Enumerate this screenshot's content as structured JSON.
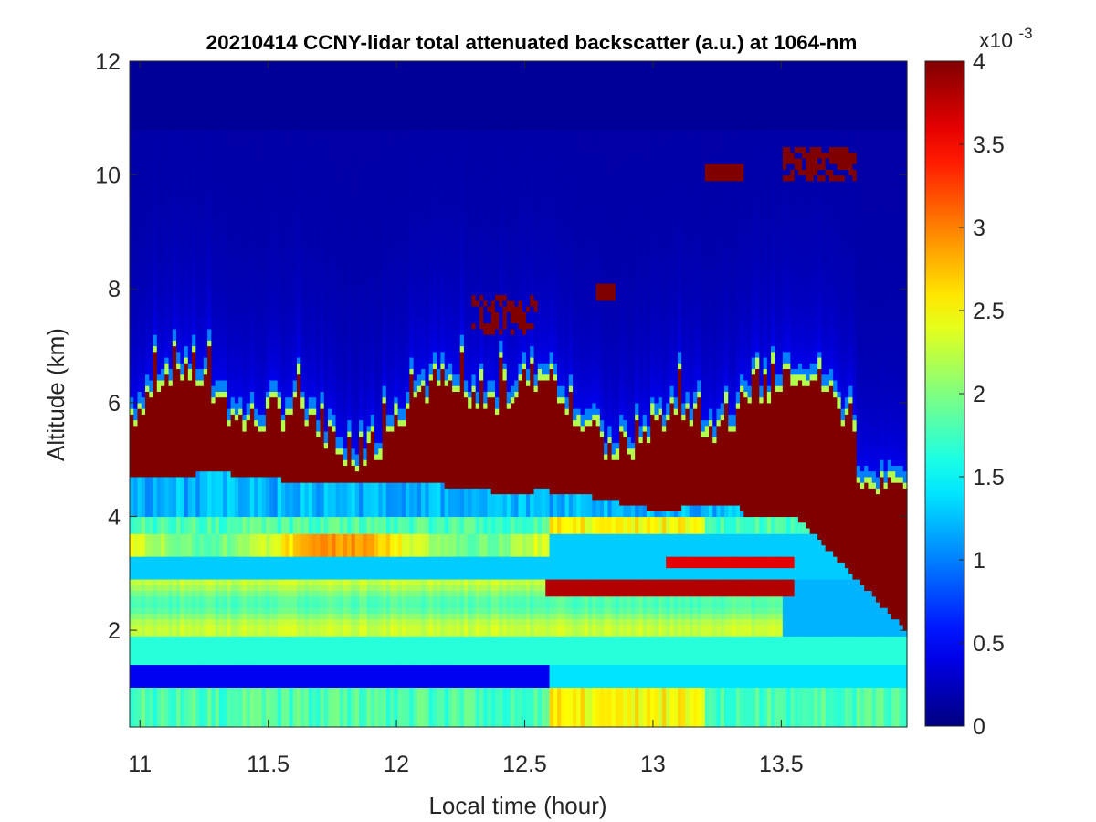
{
  "chart_data": {
    "type": "heatmap",
    "title": "20210414 CCNY-lidar total attenuated backscatter (a.u.) at 1064-nm",
    "xlabel": "Local time (hour)",
    "ylabel": "Altitude (km)",
    "xlim": [
      10.96,
      13.99
    ],
    "ylim": [
      0.3,
      12
    ],
    "xticks": [
      11,
      11.5,
      12,
      12.5,
      13,
      13.5
    ],
    "xtick_labels": [
      "11",
      "11.5",
      "12",
      "12.5",
      "13",
      "13.5"
    ],
    "yticks": [
      2,
      4,
      6,
      8,
      10,
      12
    ],
    "ytick_labels": [
      "2",
      "4",
      "6",
      "8",
      "10",
      "12"
    ],
    "colorbar": {
      "colormap": "jet",
      "clim": [
        0,
        4
      ],
      "ticks": [
        0,
        0.5,
        1,
        1.5,
        2,
        2.5,
        3,
        3.5,
        4
      ],
      "tick_labels": [
        "0",
        "0.5",
        "1",
        "1.5",
        "2",
        "2.5",
        "3",
        "3.5",
        "4"
      ],
      "exponent_base": "x10",
      "exponent_power": "-3"
    },
    "grid": false,
    "features": [
      {
        "layer": "dense aerosol/cloud layer",
        "time": [
          10.96,
          13.99
        ],
        "altitude_km": [
          4.5,
          6.5
        ],
        "value": 4
      },
      {
        "layer": "descending dense layer",
        "time": [
          13.55,
          13.99
        ],
        "altitude_km": [
          1.9,
          4.2
        ],
        "value": 4
      },
      {
        "layer": "thin layer",
        "time": [
          12.58,
          13.55
        ],
        "altitude_km": [
          2.6,
          2.95
        ],
        "value": 4
      },
      {
        "layer": "cirrus",
        "time": [
          13.2,
          13.8
        ],
        "altitude_km": [
          9.8,
          10.6
        ],
        "value": 4
      },
      {
        "layer": "elevated aerosol band",
        "time": [
          10.96,
          12.6
        ],
        "altitude_km": [
          3.3,
          3.7
        ],
        "value": 2.5
      },
      {
        "layer": "boundary layer aerosol",
        "time": [
          10.96,
          12.6
        ],
        "altitude_km": [
          2.0,
          2.6
        ],
        "value": 2.2
      },
      {
        "layer": "low clear band",
        "time": [
          10.96,
          12.6
        ],
        "altitude_km": [
          1.0,
          1.4
        ],
        "value": 0.5
      }
    ]
  }
}
